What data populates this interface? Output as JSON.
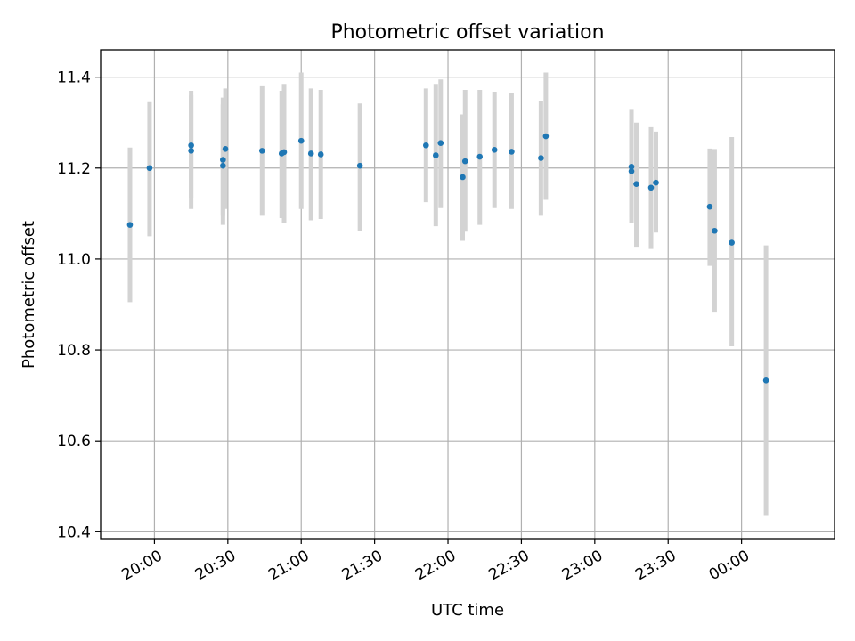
{
  "chart_data": {
    "type": "scatter",
    "title": "Photometric offset variation",
    "xlabel": "UTC time",
    "ylabel": "Photometric offset",
    "grid": true,
    "colors": {
      "point": "#1f77b4",
      "errorbar": "#d3d3d3"
    },
    "xlim": [
      "19:38",
      "00:38"
    ],
    "ylim": [
      10.385,
      11.46
    ],
    "x_ticks": [
      "20:00",
      "20:30",
      "21:00",
      "21:30",
      "22:00",
      "22:30",
      "23:00",
      "23:30",
      "00:00"
    ],
    "y_ticks": [
      "10.4",
      "10.6",
      "10.8",
      "11.0",
      "11.2",
      "11.4"
    ],
    "series": [
      {
        "points": [
          {
            "x": "19:50",
            "y": 11.075,
            "ylow": 10.905,
            "yhigh": 11.245
          },
          {
            "x": "19:58",
            "y": 11.2,
            "ylow": 11.05,
            "yhigh": 11.345
          },
          {
            "x": "20:15",
            "y": 11.25,
            "ylow": 11.135,
            "yhigh": 11.37
          },
          {
            "x": "20:15",
            "y": 11.238,
            "ylow": 11.11,
            "yhigh": 11.36
          },
          {
            "x": "20:28",
            "y": 11.205,
            "ylow": 11.075,
            "yhigh": 11.34
          },
          {
            "x": "20:28",
            "y": 11.218,
            "ylow": 11.095,
            "yhigh": 11.355
          },
          {
            "x": "20:29",
            "y": 11.242,
            "ylow": 11.11,
            "yhigh": 11.375
          },
          {
            "x": "20:44",
            "y": 11.238,
            "ylow": 11.095,
            "yhigh": 11.38
          },
          {
            "x": "20:52",
            "y": 11.232,
            "ylow": 11.09,
            "yhigh": 11.37
          },
          {
            "x": "20:53",
            "y": 11.235,
            "ylow": 11.08,
            "yhigh": 11.385
          },
          {
            "x": "21:00",
            "y": 11.26,
            "ylow": 11.11,
            "yhigh": 11.41
          },
          {
            "x": "21:04",
            "y": 11.232,
            "ylow": 11.085,
            "yhigh": 11.375
          },
          {
            "x": "21:08",
            "y": 11.23,
            "ylow": 11.088,
            "yhigh": 11.372
          },
          {
            "x": "21:24",
            "y": 11.205,
            "ylow": 11.062,
            "yhigh": 11.342
          },
          {
            "x": "21:51",
            "y": 11.25,
            "ylow": 11.125,
            "yhigh": 11.375
          },
          {
            "x": "21:55",
            "y": 11.228,
            "ylow": 11.072,
            "yhigh": 11.385
          },
          {
            "x": "21:57",
            "y": 11.255,
            "ylow": 11.112,
            "yhigh": 11.395
          },
          {
            "x": "22:06",
            "y": 11.18,
            "ylow": 11.04,
            "yhigh": 11.318
          },
          {
            "x": "22:07",
            "y": 11.215,
            "ylow": 11.06,
            "yhigh": 11.372
          },
          {
            "x": "22:13",
            "y": 11.225,
            "ylow": 11.075,
            "yhigh": 11.372
          },
          {
            "x": "22:19",
            "y": 11.24,
            "ylow": 11.112,
            "yhigh": 11.368
          },
          {
            "x": "22:26",
            "y": 11.236,
            "ylow": 11.11,
            "yhigh": 11.365
          },
          {
            "x": "22:38",
            "y": 11.222,
            "ylow": 11.095,
            "yhigh": 11.348
          },
          {
            "x": "22:40",
            "y": 11.27,
            "ylow": 11.13,
            "yhigh": 11.41
          },
          {
            "x": "23:15",
            "y": 11.193,
            "ylow": 11.08,
            "yhigh": 11.305
          },
          {
            "x": "23:15",
            "y": 11.203,
            "ylow": 11.092,
            "yhigh": 11.33
          },
          {
            "x": "23:17",
            "y": 11.165,
            "ylow": 11.025,
            "yhigh": 11.3
          },
          {
            "x": "23:23",
            "y": 11.157,
            "ylow": 11.022,
            "yhigh": 11.29
          },
          {
            "x": "23:25",
            "y": 11.168,
            "ylow": 11.058,
            "yhigh": 11.28
          },
          {
            "x": "23:47",
            "y": 11.115,
            "ylow": 10.985,
            "yhigh": 11.243
          },
          {
            "x": "23:49",
            "y": 11.062,
            "ylow": 10.882,
            "yhigh": 11.242
          },
          {
            "x": "23:56",
            "y": 11.036,
            "ylow": 10.808,
            "yhigh": 11.268
          },
          {
            "x": "00:10",
            "y": 10.733,
            "ylow": 10.435,
            "yhigh": 11.03
          }
        ]
      }
    ]
  }
}
